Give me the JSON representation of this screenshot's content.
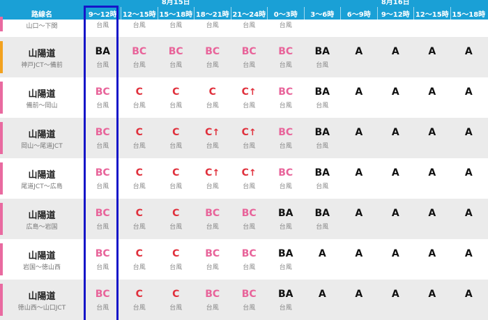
{
  "header": {
    "dates": [
      {
        "label": "8月15日",
        "column": 2
      },
      {
        "label": "8月16日",
        "column": 8
      }
    ],
    "name_label": "路線名",
    "columns": [
      "9〜12時",
      "12〜15時",
      "15〜18時",
      "18〜21時",
      "21〜24時",
      "0〜3時",
      "3〜6時",
      "6〜9時",
      "9〜12時",
      "12〜15時",
      "15〜18時"
    ],
    "highlight_column": 0
  },
  "grade_colors": {
    "BC": "#e8649a",
    "C": "#e0303c",
    "BA": "#111111",
    "A": "#111111"
  },
  "rows": [
    {
      "section": "山口〜下関",
      "color": "#e96aa0",
      "cells": [
        {
          "note": "台風"
        },
        {
          "note": "台風"
        },
        {
          "note": "台風"
        },
        {
          "note": "台風"
        },
        {
          "note": "台風"
        },
        {
          "note": "台風"
        },
        {},
        {},
        {},
        {},
        {}
      ]
    },
    {
      "route": "山陽道",
      "section": "神戸JCT〜備前",
      "color": "#f3a21f",
      "cells": [
        {
          "grade": "BA",
          "note": "台風"
        },
        {
          "grade": "BC",
          "note": "台風"
        },
        {
          "grade": "BC",
          "note": "台風"
        },
        {
          "grade": "BC",
          "note": "台風"
        },
        {
          "grade": "BC",
          "note": "台風"
        },
        {
          "grade": "BC",
          "note": "台風"
        },
        {
          "grade": "BA",
          "note": "台風"
        },
        {
          "grade": "A"
        },
        {
          "grade": "A"
        },
        {
          "grade": "A"
        },
        {
          "grade": "A"
        }
      ]
    },
    {
      "route": "山陽道",
      "section": "備前〜岡山",
      "color": "#e96aa0",
      "cells": [
        {
          "grade": "BC",
          "note": "台風"
        },
        {
          "grade": "C",
          "note": "台風"
        },
        {
          "grade": "C",
          "note": "台風"
        },
        {
          "grade": "C",
          "note": "台風"
        },
        {
          "grade": "C",
          "trend": "↑",
          "note": "台風"
        },
        {
          "grade": "BC",
          "note": "台風"
        },
        {
          "grade": "BA",
          "note": "台風"
        },
        {
          "grade": "A"
        },
        {
          "grade": "A"
        },
        {
          "grade": "A"
        },
        {
          "grade": "A"
        }
      ]
    },
    {
      "route": "山陽道",
      "section": "岡山〜尾道JCT",
      "color": "#e96aa0",
      "cells": [
        {
          "grade": "BC",
          "note": "台風"
        },
        {
          "grade": "C",
          "note": "台風"
        },
        {
          "grade": "C",
          "note": "台風"
        },
        {
          "grade": "C",
          "trend": "↑",
          "note": "台風"
        },
        {
          "grade": "C",
          "trend": "↑",
          "note": "台風"
        },
        {
          "grade": "BC",
          "note": "台風"
        },
        {
          "grade": "BA",
          "note": "台風"
        },
        {
          "grade": "A"
        },
        {
          "grade": "A"
        },
        {
          "grade": "A"
        },
        {
          "grade": "A"
        }
      ]
    },
    {
      "route": "山陽道",
      "section": "尾道JCT〜広島",
      "color": "#e96aa0",
      "cells": [
        {
          "grade": "BC",
          "note": "台風"
        },
        {
          "grade": "C",
          "note": "台風"
        },
        {
          "grade": "C",
          "note": "台風"
        },
        {
          "grade": "C",
          "trend": "↑",
          "note": "台風"
        },
        {
          "grade": "C",
          "trend": "↑",
          "note": "台風"
        },
        {
          "grade": "BC",
          "note": "台風"
        },
        {
          "grade": "BA",
          "note": "台風"
        },
        {
          "grade": "A"
        },
        {
          "grade": "A"
        },
        {
          "grade": "A"
        },
        {
          "grade": "A"
        }
      ]
    },
    {
      "route": "山陽道",
      "section": "広島〜岩国",
      "color": "#e96aa0",
      "cells": [
        {
          "grade": "BC",
          "note": "台風"
        },
        {
          "grade": "C",
          "note": "台風"
        },
        {
          "grade": "C",
          "note": "台風"
        },
        {
          "grade": "BC",
          "note": "台風"
        },
        {
          "grade": "BC",
          "note": "台風"
        },
        {
          "grade": "BA",
          "note": "台風"
        },
        {
          "grade": "BA",
          "note": "台風"
        },
        {
          "grade": "A"
        },
        {
          "grade": "A"
        },
        {
          "grade": "A"
        },
        {
          "grade": "A"
        }
      ]
    },
    {
      "route": "山陽道",
      "section": "岩国〜徳山西",
      "color": "#e96aa0",
      "cells": [
        {
          "grade": "BC",
          "note": "台風"
        },
        {
          "grade": "C",
          "note": "台風"
        },
        {
          "grade": "C",
          "note": "台風"
        },
        {
          "grade": "BC",
          "note": "台風"
        },
        {
          "grade": "BC",
          "note": "台風"
        },
        {
          "grade": "BA",
          "note": "台風"
        },
        {
          "grade": "A"
        },
        {
          "grade": "A"
        },
        {
          "grade": "A"
        },
        {
          "grade": "A"
        },
        {
          "grade": "A"
        }
      ]
    },
    {
      "route": "山陽道",
      "section": "徳山西〜山口JCT",
      "color": "#e96aa0",
      "cells": [
        {
          "grade": "BC",
          "note": "台風"
        },
        {
          "grade": "C",
          "note": "台風"
        },
        {
          "grade": "C",
          "note": "台風"
        },
        {
          "grade": "BC",
          "note": "台風"
        },
        {
          "grade": "BC",
          "note": "台風"
        },
        {
          "grade": "BA",
          "note": "台風"
        },
        {
          "grade": "A"
        },
        {
          "grade": "A"
        },
        {
          "grade": "A"
        },
        {
          "grade": "A"
        },
        {
          "grade": "A"
        }
      ]
    }
  ]
}
